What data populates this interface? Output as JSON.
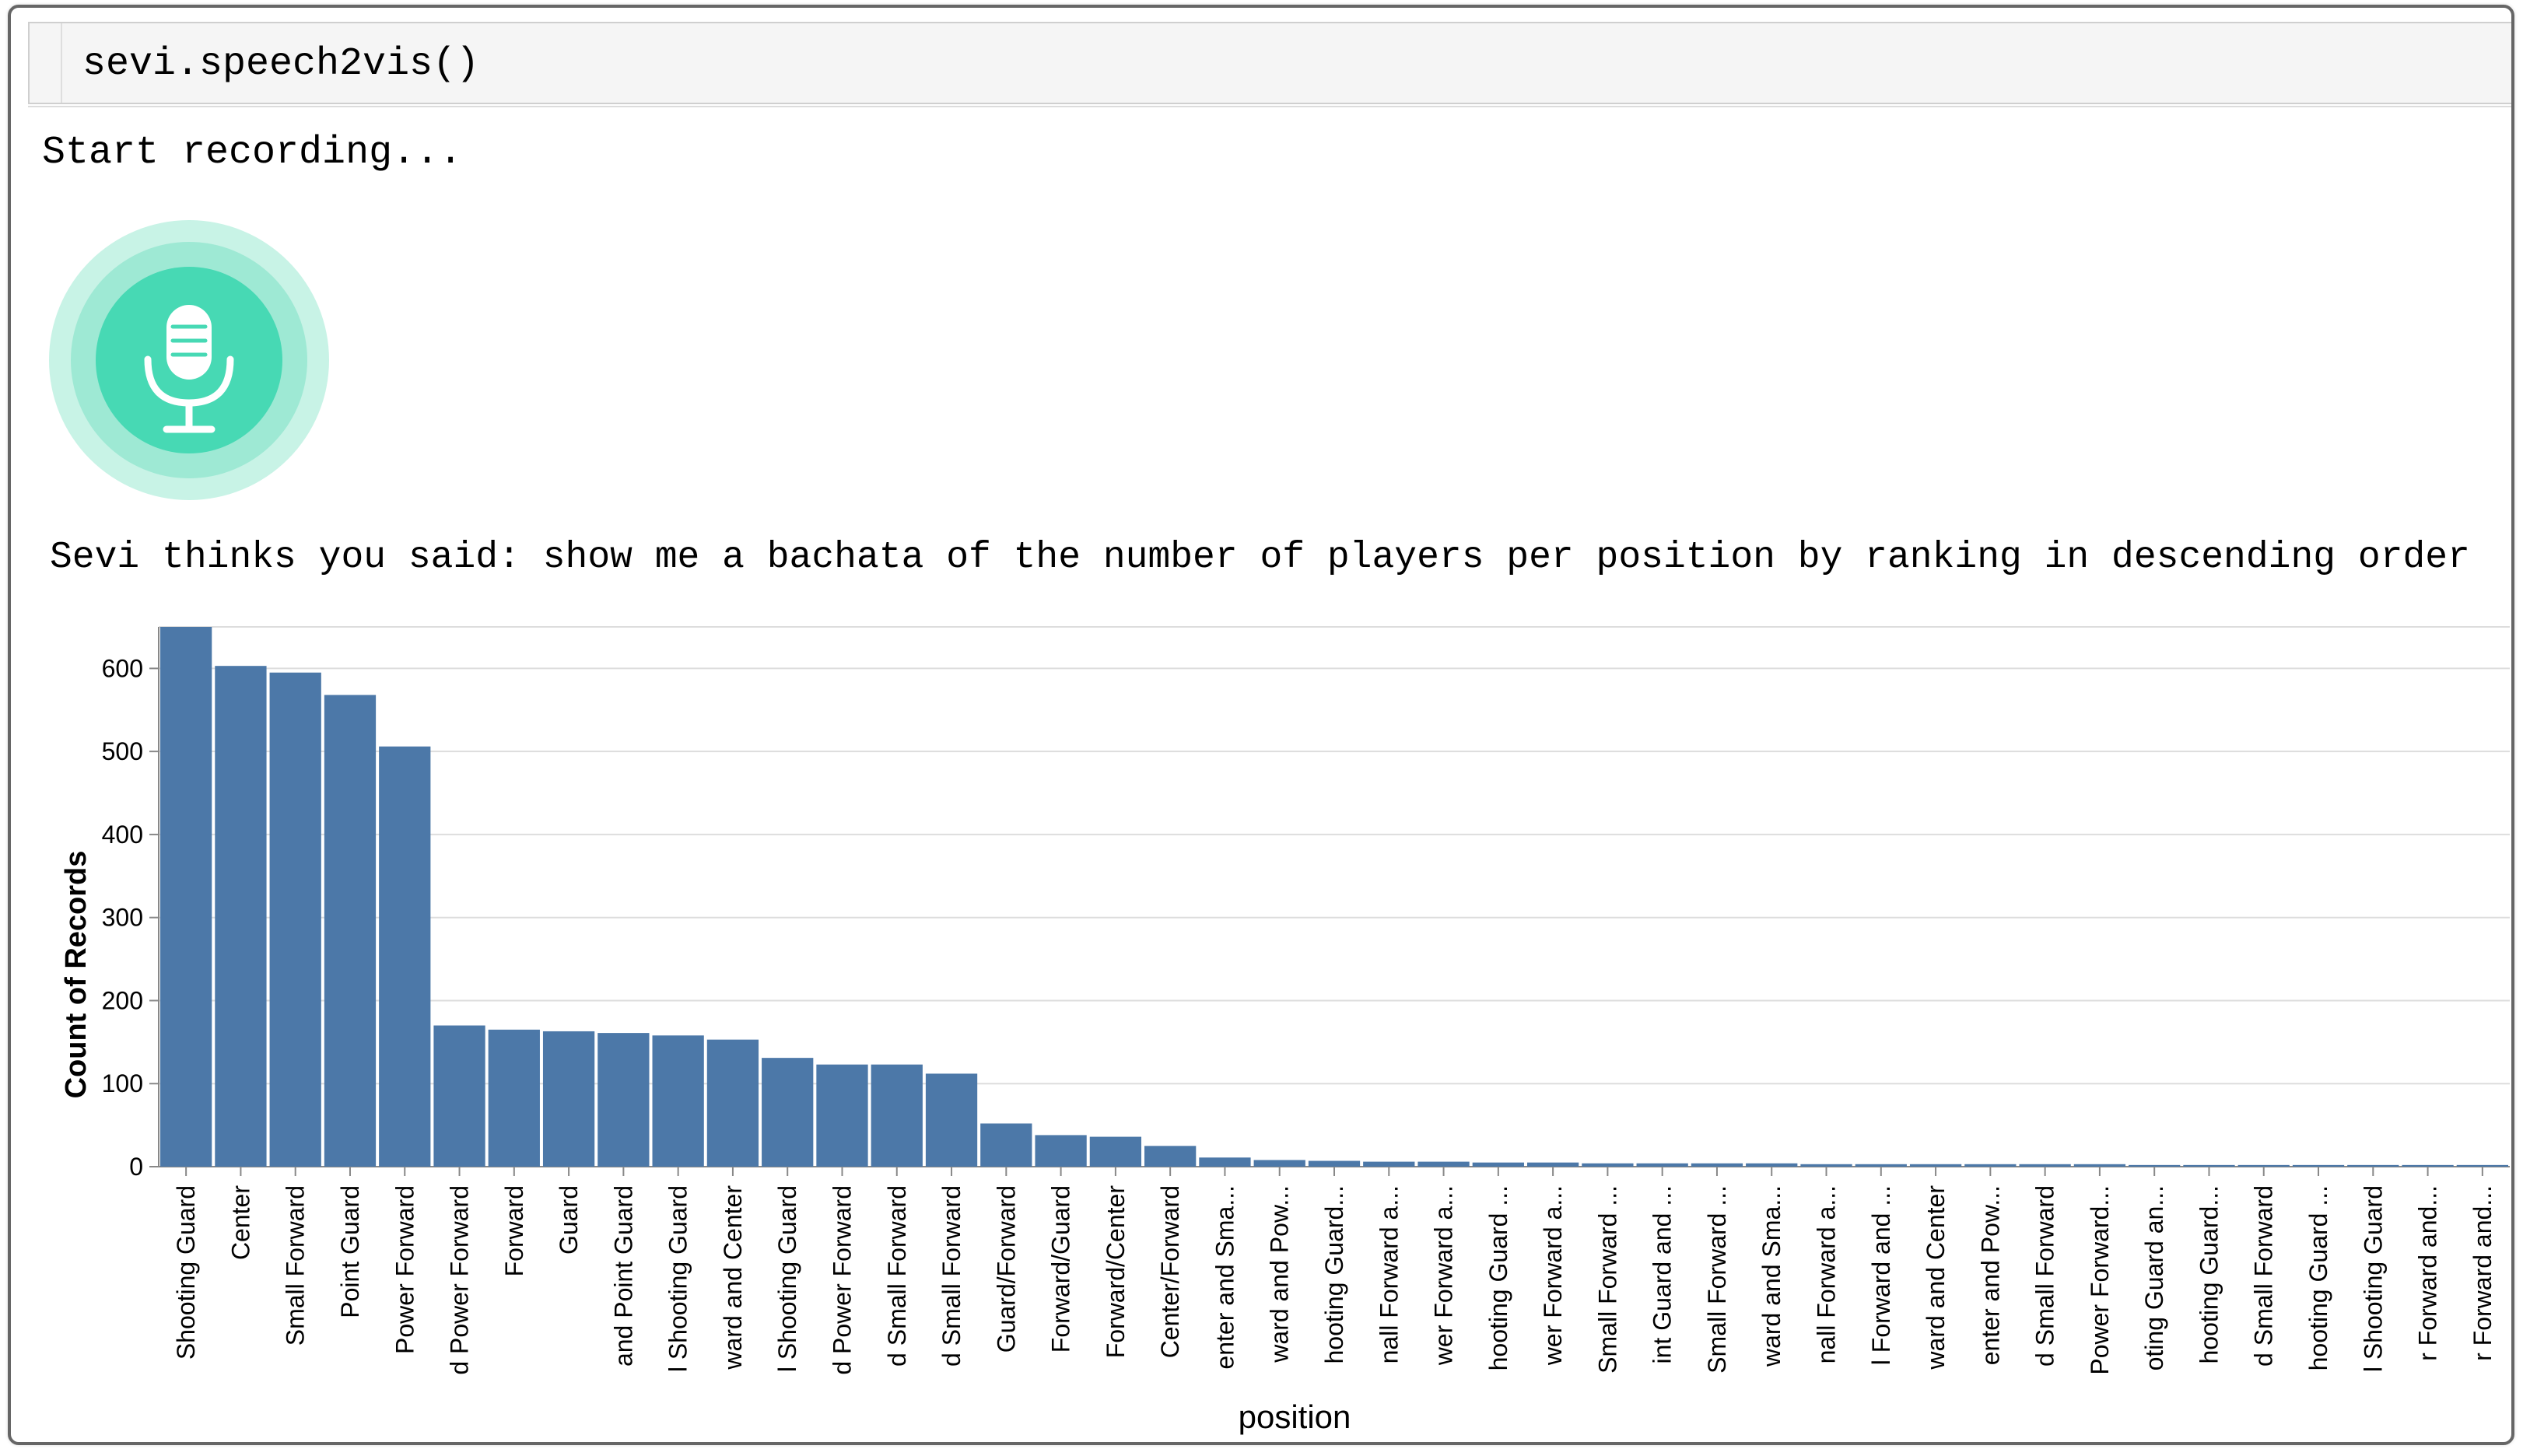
{
  "notebook": {
    "code": "sevi.speech2vis()",
    "status_text": "Start recording...",
    "transcript_prefix": "Sevi thinks you said: ",
    "transcript_text": "show me a bachata of the number of players per position by ranking in descending order",
    "mic_icon": "microphone-icon",
    "colors": {
      "mic_outer": "#c8f3e6",
      "mic_mid": "#9ee9d4",
      "mic_inner": "#47d9b4",
      "mic_glyph": "#ffffff"
    }
  },
  "chart_data": {
    "type": "bar",
    "title": "",
    "xlabel": "position",
    "ylabel": "Count of Records",
    "ylim": [
      0,
      650
    ],
    "yticks": [
      0,
      100,
      200,
      300,
      400,
      500,
      600
    ],
    "grid": true,
    "bar_color": "#4c78a8",
    "categories": [
      "Shooting Guard",
      "Center",
      "Small Forward",
      "Point Guard",
      "Power Forward",
      "d Power Forward",
      "Forward",
      "Guard",
      "and Point Guard",
      "l Shooting Guard",
      "ward and Center",
      "l Shooting Guard",
      "d Power Forward",
      "d Small Forward",
      "d Small Forward",
      "Guard/Forward",
      "Forward/Guard",
      "Forward/Center",
      "Center/Forward",
      "enter and Sma...",
      "ward and Pow...",
      "hooting Guard...",
      "nall Forward a...",
      "wer Forward a...",
      "hooting Guard ...",
      "wer Forward a...",
      "Small Forward ...",
      "int Guard and ...",
      "Small Forward ...",
      "ward and Sma...",
      "nall Forward a...",
      "l Forward and ...",
      "ward and Center",
      "enter and Pow...",
      "d Small Forward",
      "Power Forward...",
      "oting Guard an...",
      "hooting Guard...",
      "d Small Forward",
      "hooting Guard ...",
      "l Shooting Guard",
      "r Forward and...",
      "r Forward and..."
    ],
    "values": [
      650,
      603,
      595,
      568,
      506,
      170,
      165,
      163,
      161,
      158,
      153,
      131,
      123,
      123,
      112,
      52,
      38,
      36,
      25,
      11,
      8,
      7,
      6,
      6,
      5,
      5,
      4,
      4,
      4,
      4,
      3,
      3,
      3,
      3,
      3,
      3,
      2,
      2,
      2,
      2,
      2,
      2,
      2
    ]
  }
}
